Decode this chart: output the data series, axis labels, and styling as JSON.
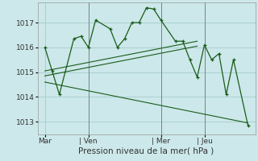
{
  "title": "Pression niveau de la mer( hPa )",
  "bg_color": "#cce8ea",
  "grid_color": "#aacfcf",
  "line_color": "#1a5c1a",
  "ylim": [
    1012.5,
    1017.8
  ],
  "yticks": [
    1013,
    1014,
    1015,
    1016,
    1017
  ],
  "xtick_labels": [
    "Mar",
    "| Ven",
    "| Mer",
    "| Jeu"
  ],
  "xtick_positions": [
    0.5,
    3.5,
    8.5,
    11.5
  ],
  "xlim": [
    0,
    15
  ],
  "main_x": [
    0.5,
    1.0,
    1.5,
    2.5,
    3.0,
    3.5,
    4.0,
    5.0,
    5.5,
    6.0,
    6.5,
    7.0,
    7.5,
    8.0,
    8.5,
    9.5,
    10.0,
    10.5,
    11.0,
    11.5,
    12.0,
    12.5,
    13.0,
    13.5,
    14.5
  ],
  "main_y": [
    1016.0,
    1015.05,
    1014.1,
    1016.35,
    1016.45,
    1016.0,
    1017.1,
    1016.75,
    1016.0,
    1016.35,
    1017.0,
    1017.0,
    1017.6,
    1017.55,
    1017.1,
    1016.25,
    1016.25,
    1015.5,
    1014.8,
    1016.1,
    1015.5,
    1015.75,
    1014.1,
    1015.5,
    1012.85
  ],
  "line1_x": [
    0.5,
    11.0
  ],
  "line1_y": [
    1015.05,
    1016.25
  ],
  "line2_x": [
    0.5,
    11.0
  ],
  "line2_y": [
    1014.85,
    1016.05
  ],
  "line3_x": [
    0.5,
    14.5
  ],
  "line3_y": [
    1014.6,
    1012.95
  ],
  "vline_x": [
    3.5,
    8.5,
    11.5
  ],
  "title_fontsize": 7.5,
  "tick_fontsize": 6.5
}
